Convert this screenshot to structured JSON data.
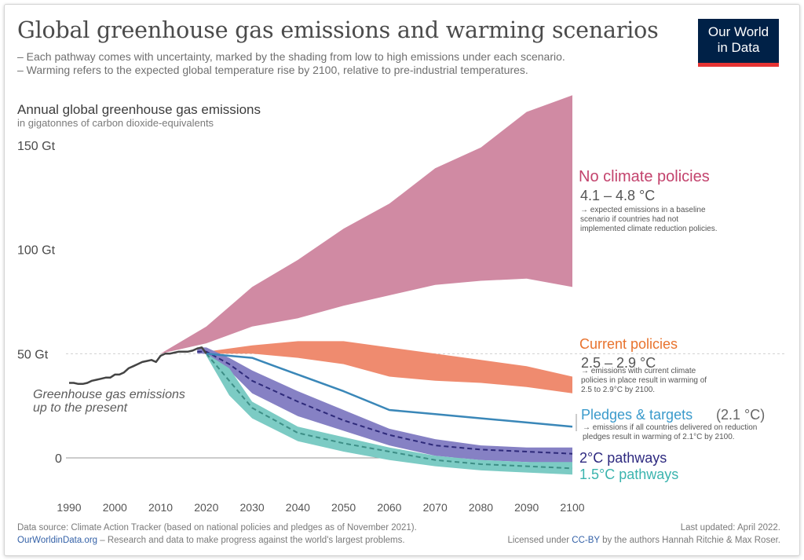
{
  "header": {
    "title": "Global greenhouse gas emissions and warming scenarios",
    "subtitle_1": "– Each pathway comes with uncertainty, marked by the shading from low to high emissions under each scenario.",
    "subtitle_2": "– Warming refers to the expected global temperature rise by 2100, relative to pre-industrial temperatures."
  },
  "logo": {
    "line1": "Our World",
    "line2": "in Data",
    "bg_color": "#002147",
    "bar_color": "#e63333"
  },
  "chart_data": {
    "type": "area",
    "title": "Annual global greenhouse gas emissions",
    "ylabel": "Annual global greenhouse gas emissions",
    "yunit": "in gigatonnes of carbon dioxide-equivalents",
    "xlim": [
      1990,
      2100
    ],
    "ylim": [
      0,
      150
    ],
    "y_ticks": [
      {
        "value": 0,
        "label": "0"
      },
      {
        "value": 50,
        "label": "50 Gt"
      },
      {
        "value": 100,
        "label": "100 Gt"
      },
      {
        "value": 150,
        "label": "150 Gt"
      }
    ],
    "x_ticks": [
      1990,
      2000,
      2010,
      2020,
      2030,
      2040,
      2050,
      2060,
      2070,
      2080,
      2090,
      2100
    ],
    "grid": "horizontal dashed at 0 and 50",
    "historical": {
      "label": "Greenhouse gas emissions up to the present",
      "color": "#444444",
      "x": [
        1990,
        1991,
        1992,
        1993,
        1994,
        1995,
        1996,
        1997,
        1998,
        1999,
        2000,
        2001,
        2002,
        2003,
        2004,
        2005,
        2006,
        2007,
        2008,
        2009,
        2010,
        2011,
        2012,
        2013,
        2014,
        2015,
        2016,
        2017,
        2018,
        2019,
        2020
      ],
      "y": [
        36,
        36,
        35.5,
        35.5,
        36,
        37,
        37.5,
        38,
        38.5,
        38.5,
        40,
        40,
        41,
        43,
        44,
        45,
        46,
        46.5,
        47,
        46,
        49,
        50,
        50,
        50.5,
        51,
        51,
        51,
        51.5,
        52.5,
        53,
        50
      ]
    },
    "scenarios": [
      {
        "name": "No climate policies",
        "warming": "4.1 – 4.8 °C",
        "note": "expected emissions in a baseline scenario if countries had not implemented climate reduction policies.",
        "color": "#d08aa3",
        "label_color": "#c3436d",
        "x": [
          2010,
          2020,
          2030,
          2040,
          2050,
          2060,
          2070,
          2080,
          2090,
          2100
        ],
        "upper": [
          50,
          63,
          82,
          95,
          110,
          122,
          139,
          149,
          166,
          174
        ],
        "lower": [
          50,
          55,
          63,
          67,
          73,
          78,
          83,
          85,
          86,
          82
        ]
      },
      {
        "name": "Current policies",
        "warming": "2.5 – 2.9 °C",
        "note": "emissions with current climate policies in place result in warming of 2.5 to 2.9°C by 2100.",
        "color": "#ef8b6f",
        "label_color": "#e8732e",
        "x": [
          2020,
          2030,
          2040,
          2050,
          2060,
          2070,
          2080,
          2090,
          2100
        ],
        "upper": [
          51,
          54,
          56,
          56,
          53,
          50,
          47,
          44,
          39
        ],
        "lower": [
          50,
          50,
          48,
          45,
          39,
          37,
          36,
          34,
          31
        ]
      },
      {
        "name": "Pledges & targets",
        "warming": "(2.1 °C)",
        "note": "emissions if all countries delivered on reduction pledges result in warming of 2.1°C by 2100.",
        "color": "#3a87b8",
        "label_color": "#3a9acb",
        "x": [
          2020,
          2025,
          2030,
          2035,
          2040,
          2050,
          2060,
          2070,
          2080,
          2090,
          2100
        ],
        "y": [
          50,
          49,
          48,
          44,
          40,
          32,
          23,
          21,
          19,
          17,
          15
        ]
      },
      {
        "name": "2°C pathways",
        "color": "#8681c4",
        "line_color": "#2e2a7a",
        "label_color": "#2e2a80",
        "x": [
          2018,
          2020,
          2025,
          2030,
          2040,
          2050,
          2060,
          2070,
          2080,
          2090,
          2100
        ],
        "upper": [
          53,
          53,
          48,
          42,
          32,
          23,
          14,
          9,
          6,
          5,
          5
        ],
        "mid": [
          51,
          51,
          45,
          37,
          27,
          18,
          11,
          6,
          4,
          3,
          2
        ],
        "lower": [
          50,
          50,
          42,
          31,
          20,
          13,
          6,
          1,
          -1,
          -2,
          -3
        ]
      },
      {
        "name": "1.5°C pathways",
        "color": "#7ccbc4",
        "line_color": "#3d8e86",
        "label_color": "#3bb4ae",
        "x": [
          2020,
          2025,
          2030,
          2040,
          2050,
          2060,
          2070,
          2080,
          2090,
          2100
        ],
        "upper": [
          50,
          43,
          27,
          15,
          10,
          5,
          1,
          -1,
          -2,
          -2
        ],
        "mid": [
          50,
          37,
          24,
          12,
          7,
          3,
          -1,
          -3,
          -4,
          -5
        ],
        "lower": [
          49,
          30,
          19,
          8,
          3,
          -1,
          -4,
          -6,
          -7,
          -8
        ]
      }
    ]
  },
  "footer": {
    "source": "Data source: Climate Action Tracker (based on national policies and pledges as of November 2021).",
    "site": "OurWorldinData.org",
    "tagline": " – Research and data to make progress against the world's largest problems.",
    "updated": "Last updated: April 2022.",
    "license_pre": "Licensed under ",
    "license": "CC-BY",
    "license_post": " by the authors Hannah Ritchie & Max Roser."
  }
}
